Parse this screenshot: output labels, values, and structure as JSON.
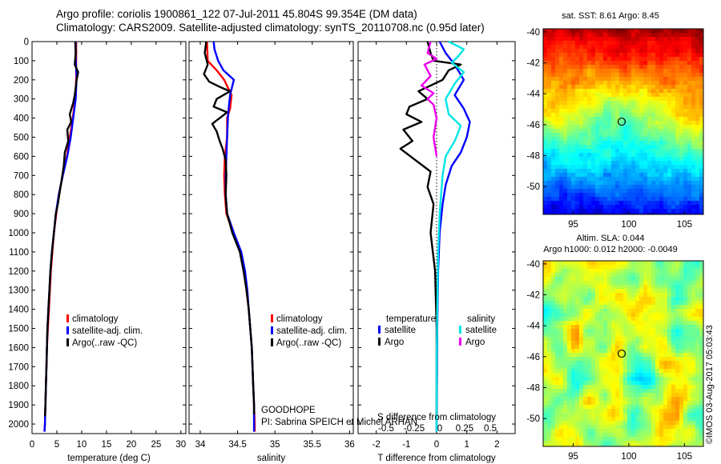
{
  "header": {
    "title_line1": "Argo profile: coriolis 1900861_122 07-Jul-2011 45.804S 99.354E (DM data)",
    "title_line2": "Climatology: CARS2009. Satellite-adjusted climatology: synTS_20110708.nc (0.95d later)"
  },
  "shared_depth_axis": {
    "ticks": [
      0,
      100,
      200,
      300,
      400,
      500,
      600,
      700,
      800,
      900,
      1000,
      1100,
      1200,
      1300,
      1400,
      1500,
      1600,
      1700,
      1800,
      1900,
      2000
    ],
    "ylim": [
      0,
      2050
    ]
  },
  "colors": {
    "climatology": "#ff0000",
    "satellite": "#0000ff",
    "argo": "#000000",
    "sat_salinity": "#00e5e5",
    "argo_salinity": "#ee00ee"
  },
  "chart_data": [
    {
      "id": "temperature",
      "type": "line",
      "xlabel": "temperature (deg C)",
      "xlim": [
        0,
        31
      ],
      "xticks": [
        0,
        5,
        10,
        15,
        20,
        25,
        30
      ],
      "legend": [
        "climatology",
        "satellite-adj. clim.",
        "Argo(..raw -QC)"
      ],
      "series": [
        {
          "name": "climatology",
          "color": "#ff0000",
          "points": [
            [
              8.9,
              0
            ],
            [
              8.9,
              100
            ],
            [
              8.9,
              200
            ],
            [
              8.7,
              300
            ],
            [
              8.2,
              400
            ],
            [
              7.6,
              500
            ],
            [
              7.0,
              600
            ],
            [
              6.2,
              700
            ],
            [
              5.4,
              800
            ],
            [
              4.9,
              900
            ],
            [
              4.4,
              1000
            ],
            [
              4.1,
              1100
            ],
            [
              3.8,
              1200
            ],
            [
              3.6,
              1300
            ],
            [
              3.4,
              1400
            ],
            [
              3.2,
              1500
            ],
            [
              3.0,
              1600
            ],
            [
              2.9,
              1700
            ],
            [
              2.8,
              1800
            ],
            [
              2.7,
              1900
            ],
            [
              2.6,
              2000
            ],
            [
              2.5,
              2040
            ]
          ]
        },
        {
          "name": "satellite-adj. clim.",
          "color": "#0000ff",
          "points": [
            [
              8.8,
              0
            ],
            [
              8.8,
              100
            ],
            [
              9.0,
              180
            ],
            [
              8.8,
              300
            ],
            [
              8.3,
              400
            ],
            [
              7.8,
              500
            ],
            [
              7.1,
              600
            ],
            [
              6.2,
              700
            ],
            [
              5.4,
              800
            ],
            [
              4.8,
              900
            ],
            [
              4.4,
              1000
            ],
            [
              4.0,
              1100
            ],
            [
              3.7,
              1200
            ],
            [
              3.5,
              1300
            ],
            [
              3.3,
              1400
            ],
            [
              3.1,
              1500
            ],
            [
              3.0,
              1600
            ],
            [
              2.9,
              1700
            ],
            [
              2.8,
              1800
            ],
            [
              2.7,
              1900
            ],
            [
              2.6,
              2000
            ],
            [
              2.5,
              2040
            ]
          ]
        },
        {
          "name": "Argo(..raw -QC)",
          "color": "#000000",
          "points": [
            [
              8.7,
              0
            ],
            [
              8.8,
              60
            ],
            [
              8.6,
              120
            ],
            [
              9.3,
              160
            ],
            [
              9.0,
              200
            ],
            [
              8.6,
              280
            ],
            [
              8.3,
              320
            ],
            [
              7.6,
              380
            ],
            [
              7.9,
              420
            ],
            [
              7.1,
              460
            ],
            [
              7.3,
              520
            ],
            [
              6.6,
              580
            ],
            [
              6.4,
              650
            ],
            [
              5.8,
              750
            ],
            [
              5.2,
              850
            ],
            [
              4.8,
              900
            ],
            [
              4.4,
              1000
            ],
            [
              4.0,
              1100
            ],
            [
              3.7,
              1200
            ],
            [
              3.5,
              1300
            ],
            [
              3.3,
              1400
            ],
            [
              3.1,
              1500
            ],
            [
              3.0,
              1600
            ],
            [
              2.9,
              1700
            ],
            [
              2.8,
              1800
            ],
            [
              2.7,
              1900
            ],
            [
              2.6,
              1960
            ]
          ]
        }
      ]
    },
    {
      "id": "salinity",
      "type": "line",
      "xlabel": "salinity",
      "xlim": [
        33.85,
        36.05
      ],
      "xticks": [
        34,
        34.5,
        35,
        35.5,
        36
      ],
      "legend": [
        "climatology",
        "satellite-adj. clim.",
        "Argo(..raw -QC)"
      ],
      "annotation": [
        "GOODHOPE",
        "PI: Sabrina SPEICH et Michel ARHAN"
      ],
      "series": [
        {
          "name": "climatology",
          "color": "#ff0000",
          "points": [
            [
              34.09,
              0
            ],
            [
              34.1,
              100
            ],
            [
              34.22,
              150
            ],
            [
              34.32,
              200
            ],
            [
              34.42,
              280
            ],
            [
              34.4,
              350
            ],
            [
              34.36,
              400
            ],
            [
              34.36,
              500
            ],
            [
              34.33,
              600
            ],
            [
              34.32,
              700
            ],
            [
              34.33,
              800
            ],
            [
              34.35,
              900
            ],
            [
              34.44,
              1000
            ],
            [
              34.54,
              1100
            ],
            [
              34.59,
              1200
            ],
            [
              34.62,
              1300
            ],
            [
              34.65,
              1400
            ],
            [
              34.67,
              1500
            ],
            [
              34.69,
              1600
            ],
            [
              34.7,
              1700
            ],
            [
              34.71,
              1800
            ],
            [
              34.72,
              1900
            ],
            [
              34.73,
              2000
            ],
            [
              34.73,
              2040
            ]
          ]
        },
        {
          "name": "satellite-adj. clim.",
          "color": "#0000ff",
          "points": [
            [
              34.18,
              0
            ],
            [
              34.19,
              40
            ],
            [
              34.24,
              100
            ],
            [
              34.31,
              150
            ],
            [
              34.45,
              200
            ],
            [
              34.4,
              280
            ],
            [
              34.38,
              350
            ],
            [
              34.37,
              400
            ],
            [
              34.36,
              500
            ],
            [
              34.35,
              600
            ],
            [
              34.34,
              700
            ],
            [
              34.34,
              800
            ],
            [
              34.36,
              900
            ],
            [
              34.45,
              1000
            ],
            [
              34.55,
              1100
            ],
            [
              34.6,
              1200
            ],
            [
              34.63,
              1300
            ],
            [
              34.65,
              1400
            ],
            [
              34.67,
              1500
            ],
            [
              34.69,
              1600
            ],
            [
              34.7,
              1700
            ],
            [
              34.71,
              1800
            ],
            [
              34.72,
              1900
            ],
            [
              34.72,
              2000
            ],
            [
              34.72,
              2040
            ]
          ]
        },
        {
          "name": "Argo(..raw -QC)",
          "color": "#000000",
          "points": [
            [
              34.08,
              0
            ],
            [
              34.06,
              60
            ],
            [
              34.1,
              120
            ],
            [
              34.05,
              170
            ],
            [
              34.12,
              210
            ],
            [
              34.28,
              240
            ],
            [
              34.4,
              260
            ],
            [
              34.22,
              300
            ],
            [
              34.18,
              340
            ],
            [
              34.36,
              370
            ],
            [
              34.16,
              430
            ],
            [
              34.22,
              470
            ],
            [
              34.26,
              520
            ],
            [
              34.3,
              560
            ],
            [
              34.34,
              620
            ],
            [
              34.35,
              700
            ],
            [
              34.34,
              800
            ],
            [
              34.36,
              900
            ],
            [
              34.43,
              1000
            ],
            [
              34.53,
              1100
            ],
            [
              34.58,
              1200
            ],
            [
              34.62,
              1300
            ],
            [
              34.65,
              1400
            ],
            [
              34.67,
              1500
            ],
            [
              34.69,
              1600
            ],
            [
              34.7,
              1700
            ],
            [
              34.71,
              1800
            ],
            [
              34.72,
              1900
            ],
            [
              34.72,
              1950
            ]
          ]
        }
      ]
    },
    {
      "id": "difference",
      "type": "line",
      "xlabel": "T difference from climatology",
      "xlabel_top": "S difference from climatology",
      "xlim": [
        -2.6,
        2.6
      ],
      "xticks": [
        -2,
        -1,
        0,
        1,
        2
      ],
      "s_xticks": [
        "-0.5",
        "-0.25",
        "0",
        "0.25",
        "0.5"
      ],
      "legend_headers": [
        "temperature",
        "salinity"
      ],
      "legend": [
        "satellite",
        "Argo",
        "satellite",
        "Argo"
      ],
      "series": [
        {
          "name": "temperature satellite",
          "color": "#0000ff",
          "points": [
            [
              0.1,
              0
            ],
            [
              0.3,
              60
            ],
            [
              0.6,
              120
            ],
            [
              0.9,
              200
            ],
            [
              0.6,
              280
            ],
            [
              0.9,
              350
            ],
            [
              1.1,
              420
            ],
            [
              1.0,
              500
            ],
            [
              0.8,
              580
            ],
            [
              0.5,
              650
            ],
            [
              0.3,
              750
            ],
            [
              0.2,
              850
            ],
            [
              0.1,
              1000
            ],
            [
              0.05,
              1200
            ],
            [
              0.02,
              1500
            ],
            [
              0.0,
              2000
            ],
            [
              0.0,
              2040
            ]
          ]
        },
        {
          "name": "temperature Argo",
          "color": "#000000",
          "points": [
            [
              -0.3,
              0
            ],
            [
              -0.2,
              60
            ],
            [
              -0.1,
              100
            ],
            [
              0.8,
              120
            ],
            [
              0.4,
              150
            ],
            [
              0.2,
              200
            ],
            [
              -0.6,
              260
            ],
            [
              -0.3,
              300
            ],
            [
              -0.9,
              340
            ],
            [
              -1.0,
              380
            ],
            [
              -0.5,
              420
            ],
            [
              -1.1,
              460
            ],
            [
              -0.8,
              520
            ],
            [
              -1.2,
              560
            ],
            [
              -0.7,
              620
            ],
            [
              -0.2,
              680
            ],
            [
              -0.3,
              760
            ],
            [
              -0.1,
              850
            ],
            [
              -0.2,
              1000
            ],
            [
              -0.05,
              1200
            ],
            [
              0.0,
              1500
            ],
            [
              0.0,
              1960
            ]
          ]
        },
        {
          "name": "salinity satellite",
          "color": "#00e5e5",
          "points": [
            [
              0.4,
              0
            ],
            [
              0.9,
              40
            ],
            [
              0.7,
              80
            ],
            [
              0.5,
              110
            ],
            [
              0.9,
              160
            ],
            [
              0.6,
              220
            ],
            [
              0.3,
              300
            ],
            [
              0.4,
              380
            ],
            [
              0.8,
              440
            ],
            [
              0.6,
              520
            ],
            [
              0.3,
              600
            ],
            [
              0.2,
              700
            ],
            [
              0.1,
              900
            ],
            [
              0.05,
              1100
            ],
            [
              0.02,
              1400
            ],
            [
              0.0,
              1700
            ],
            [
              0.0,
              2040
            ]
          ]
        },
        {
          "name": "salinity Argo",
          "color": "#ee00ee",
          "points": [
            [
              -0.2,
              0
            ],
            [
              -0.3,
              60
            ],
            [
              0.0,
              90
            ],
            [
              -0.4,
              120
            ],
            [
              -0.2,
              180
            ],
            [
              -0.5,
              230
            ],
            [
              -0.1,
              270
            ],
            [
              -0.3,
              300
            ],
            [
              -0.1,
              330
            ],
            [
              0.0,
              400
            ],
            [
              -0.1,
              500
            ],
            [
              0.0,
              600
            ]
          ]
        }
      ]
    },
    {
      "id": "sst_map",
      "type": "heatmap",
      "title": "sat. SST: 8.61 Argo: 8.45",
      "xticks": [
        95,
        100,
        105
      ],
      "yticks": [
        -40,
        -42,
        -44,
        -46,
        -48,
        -50
      ],
      "xlim": [
        92.3,
        106.7
      ],
      "ylim": [
        -51.8,
        -39.8
      ],
      "marker": {
        "lon": 99.354,
        "lat": -45.804
      }
    },
    {
      "id": "sla_map",
      "type": "heatmap",
      "title_line1": "Altim. SLA: 0.044",
      "title_line2": "Argo h1000: 0.012 h2000: -0.0049",
      "xticks": [
        95,
        100,
        105
      ],
      "yticks": [
        -40,
        -42,
        -44,
        -46,
        -48,
        -50
      ],
      "xlim": [
        92.3,
        106.7
      ],
      "ylim": [
        -51.8,
        -39.8
      ],
      "marker": {
        "lon": 99.354,
        "lat": -45.804
      }
    }
  ],
  "copyright": "©IMOS 03-Aug-2017 05:03:43"
}
